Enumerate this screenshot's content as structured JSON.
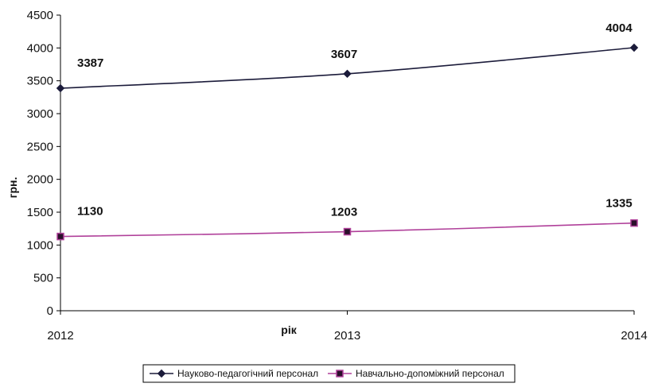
{
  "chart_data": {
    "type": "line",
    "x": [
      "2012",
      "2013",
      "2014"
    ],
    "series": [
      {
        "name": "Науково-педагогічний персонал",
        "values": [
          3387,
          3607,
          4004
        ],
        "color": "#1b1b3a",
        "marker": "diamond"
      },
      {
        "name": "Навчально-допоміжний персонал",
        "values": [
          1130,
          1203,
          1335
        ],
        "color": "#b0409a",
        "marker": "square"
      }
    ],
    "xlabel": "рік",
    "ylabel": "грн.",
    "ylim": [
      0,
      4500
    ],
    "yticks": [
      "0",
      "500",
      "1000",
      "1500",
      "2000",
      "2500",
      "3000",
      "3500",
      "4000",
      "4500"
    ],
    "grid": false,
    "legend": "bottom"
  }
}
